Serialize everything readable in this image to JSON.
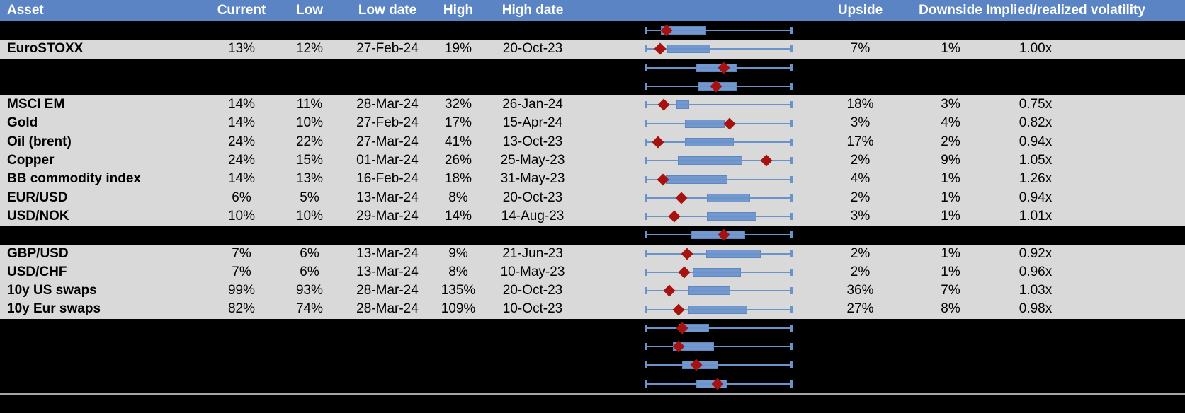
{
  "colors": {
    "header_bg": "#5b84c4",
    "row_gray": "#d9d9d9",
    "row_black": "#000000",
    "box_fill": "#7398ce",
    "box_border": "#5f86bd",
    "whisker": "#6b93cb",
    "marker": "#a6120f",
    "divider": "#a6a6a6",
    "header_text": "#ffffff",
    "body_text": "#000000"
  },
  "chart_data": {
    "type": "table",
    "columns": [
      "Asset",
      "Current",
      "Low",
      "Low date",
      "High",
      "High date",
      "",
      "Upside",
      "Downside",
      "Implied/realized volatility"
    ],
    "embedded_plot": "boxplot",
    "boxplot_scale": {
      "min": 0,
      "max": 1,
      "note_positions": "box and marker positions normalized 0-1 across whisker span"
    },
    "rows": [
      {
        "asset": "",
        "current": "",
        "low": "",
        "low_date": "",
        "high": "",
        "high_date": "",
        "upside": "",
        "downside": "",
        "implied_realized": "",
        "bg": "black",
        "boxplot": {
          "box": [
            0.102,
            0.415
          ],
          "marker": 0.141
        }
      },
      {
        "asset": "EuroSTOXX",
        "current": "13%",
        "low": "12%",
        "low_date": "27-Feb-24",
        "high": "19%",
        "high_date": "20-Oct-23",
        "upside": "7%",
        "downside": "1%",
        "implied_realized": "1.00x",
        "bg": "gray",
        "boxplot": {
          "box": [
            0.146,
            0.444
          ],
          "marker": 0.098
        }
      },
      {
        "asset": "",
        "current": "",
        "low": "",
        "low_date": "",
        "high": "",
        "high_date": "",
        "upside": "",
        "downside": "",
        "implied_realized": "",
        "bg": "black",
        "boxplot": {
          "box": [
            0.346,
            0.624
          ],
          "marker": 0.537
        }
      },
      {
        "asset": "",
        "current": "",
        "low": "",
        "low_date": "",
        "high": "",
        "high_date": "",
        "upside": "",
        "downside": "",
        "implied_realized": "",
        "bg": "black",
        "boxplot": {
          "box": [
            0.361,
            0.624
          ],
          "marker": 0.483
        }
      },
      {
        "asset": "MSCI EM",
        "current": "14%",
        "low": "11%",
        "low_date": "28-Mar-24",
        "high": "32%",
        "high_date": "26-Jan-24",
        "upside": "18%",
        "downside": "3%",
        "implied_realized": "0.75x",
        "bg": "gray",
        "boxplot": {
          "box": [
            0.21,
            0.298
          ],
          "marker": 0.122
        }
      },
      {
        "asset": "Gold",
        "current": "14%",
        "low": "10%",
        "low_date": "27-Feb-24",
        "high": "17%",
        "high_date": "15-Apr-24",
        "upside": "3%",
        "downside": "4%",
        "implied_realized": "0.82x",
        "bg": "gray",
        "boxplot": {
          "box": [
            0.268,
            0.541
          ],
          "marker": 0.576
        }
      },
      {
        "asset": "Oil (brent)",
        "current": "24%",
        "low": "22%",
        "low_date": "27-Mar-24",
        "high": "41%",
        "high_date": "13-Oct-23",
        "upside": "17%",
        "downside": "2%",
        "implied_realized": "0.94x",
        "bg": "gray",
        "boxplot": {
          "box": [
            0.268,
            0.605
          ],
          "marker": 0.083
        }
      },
      {
        "asset": "Copper",
        "current": "24%",
        "low": "15%",
        "low_date": "01-Mar-24",
        "high": "26%",
        "high_date": "25-May-23",
        "upside": "2%",
        "downside": "9%",
        "implied_realized": "1.05x",
        "bg": "gray",
        "boxplot": {
          "box": [
            0.22,
            0.663
          ],
          "marker": 0.829
        }
      },
      {
        "asset": "BB commodity index",
        "current": "14%",
        "low": "13%",
        "low_date": "16-Feb-24",
        "high": "18%",
        "high_date": "31-May-23",
        "upside": "4%",
        "downside": "1%",
        "implied_realized": "1.26x",
        "bg": "gray",
        "boxplot": {
          "box": [
            0.137,
            0.561
          ],
          "marker": 0.117
        }
      },
      {
        "asset": "EUR/USD",
        "current": "6%",
        "low": "5%",
        "low_date": "13-Mar-24",
        "high": "8%",
        "high_date": "20-Oct-23",
        "upside": "2%",
        "downside": "1%",
        "implied_realized": "0.94x",
        "bg": "gray",
        "boxplot": {
          "box": [
            0.42,
            0.717
          ],
          "marker": 0.244
        }
      },
      {
        "asset": "USD/NOK",
        "current": "10%",
        "low": "10%",
        "low_date": "29-Mar-24",
        "high": "14%",
        "high_date": "14-Aug-23",
        "upside": "3%",
        "downside": "1%",
        "implied_realized": "1.01x",
        "bg": "gray",
        "boxplot": {
          "box": [
            0.42,
            0.761
          ],
          "marker": 0.195
        }
      },
      {
        "asset": "",
        "current": "",
        "low": "",
        "low_date": "",
        "high": "",
        "high_date": "",
        "upside": "",
        "downside": "",
        "implied_realized": "",
        "bg": "black",
        "boxplot": {
          "box": [
            0.312,
            0.683
          ],
          "marker": 0.537
        }
      },
      {
        "asset": "GBP/USD",
        "current": "7%",
        "low": "6%",
        "low_date": "13-Mar-24",
        "high": "9%",
        "high_date": "21-Jun-23",
        "upside": "2%",
        "downside": "1%",
        "implied_realized": "0.92x",
        "bg": "gray",
        "boxplot": {
          "box": [
            0.415,
            0.79
          ],
          "marker": 0.283
        }
      },
      {
        "asset": "USD/CHF",
        "current": "7%",
        "low": "6%",
        "low_date": "13-Mar-24",
        "high": "8%",
        "high_date": "10-May-23",
        "upside": "2%",
        "downside": "1%",
        "implied_realized": "0.96x",
        "bg": "gray",
        "boxplot": {
          "box": [
            0.322,
            0.654
          ],
          "marker": 0.263
        }
      },
      {
        "asset": "10y US swaps",
        "current": "99%",
        "low": "93%",
        "low_date": "28-Mar-24",
        "high": "135%",
        "high_date": "20-Oct-23",
        "upside": "36%",
        "downside": "7%",
        "implied_realized": "1.03x",
        "bg": "gray",
        "boxplot": {
          "box": [
            0.293,
            0.58
          ],
          "marker": 0.161
        }
      },
      {
        "asset": "10y Eur swaps",
        "current": "82%",
        "low": "74%",
        "low_date": "28-Mar-24",
        "high": "109%",
        "high_date": "10-Oct-23",
        "upside": "27%",
        "downside": "8%",
        "implied_realized": "0.98x",
        "bg": "gray",
        "boxplot": {
          "box": [
            0.293,
            0.698
          ],
          "marker": 0.224
        }
      },
      {
        "asset": "",
        "current": "",
        "low": "",
        "low_date": "",
        "high": "",
        "high_date": "",
        "upside": "",
        "downside": "",
        "implied_realized": "",
        "bg": "black",
        "boxplot": {
          "box": [
            0.224,
            0.434
          ],
          "marker": 0.249
        }
      },
      {
        "asset": "",
        "current": "",
        "low": "",
        "low_date": "",
        "high": "",
        "high_date": "",
        "upside": "",
        "downside": "",
        "implied_realized": "",
        "bg": "black",
        "boxplot": {
          "box": [
            0.185,
            0.468
          ],
          "marker": 0.224
        }
      },
      {
        "asset": "",
        "current": "",
        "low": "",
        "low_date": "",
        "high": "",
        "high_date": "",
        "upside": "",
        "downside": "",
        "implied_realized": "",
        "bg": "black",
        "boxplot": {
          "box": [
            0.249,
            0.498
          ],
          "marker": 0.346
        }
      },
      {
        "asset": "",
        "current": "",
        "low": "",
        "low_date": "",
        "high": "",
        "high_date": "",
        "upside": "",
        "downside": "",
        "implied_realized": "",
        "bg": "black",
        "boxplot": {
          "box": [
            0.346,
            0.556
          ],
          "marker": 0.493
        }
      }
    ]
  }
}
